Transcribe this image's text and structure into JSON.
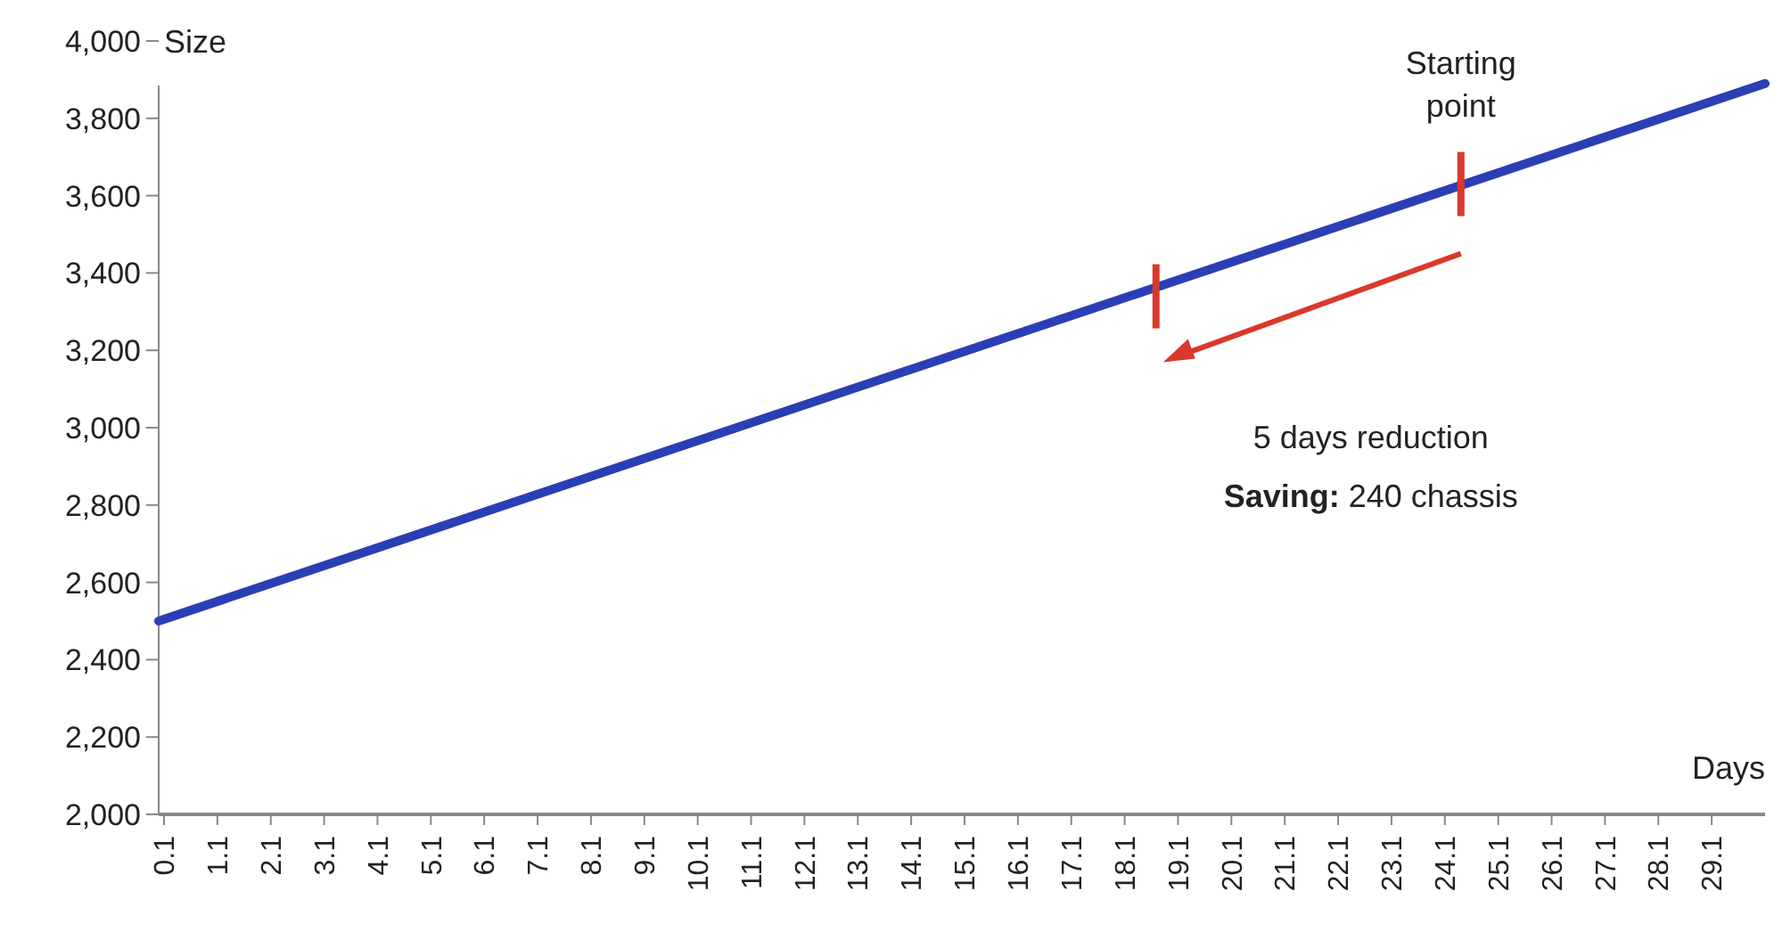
{
  "chart_data": {
    "type": "line",
    "xlabel": "Days",
    "ylabel": "Size",
    "x": [
      0,
      30.1
    ],
    "series": [
      {
        "color": "#2a3fb5",
        "values": [
          2500,
          3890
        ]
      }
    ],
    "xlim": [
      0,
      30.1
    ],
    "xticks": [
      0.1,
      1.1,
      2.1,
      3.1,
      4.1,
      5.1,
      6.1,
      7.1,
      8.1,
      9.1,
      10.1,
      11.1,
      12.1,
      13.1,
      14.1,
      15.1,
      16.1,
      17.1,
      18.1,
      19.1,
      20.1,
      21.1,
      22.1,
      23.1,
      24.1,
      25.1,
      26.1,
      27.1,
      28.1,
      29.1
    ],
    "ylim": [
      2000,
      4000
    ],
    "yticks": [
      {
        "value": 2000,
        "label": "2,000"
      },
      {
        "value": 2200,
        "label": "2,200"
      },
      {
        "value": 2400,
        "label": "2,400"
      },
      {
        "value": 2600,
        "label": "2,600"
      },
      {
        "value": 2800,
        "label": "2,800"
      },
      {
        "value": 3000,
        "label": "3,000"
      },
      {
        "value": 3200,
        "label": "3,200"
      },
      {
        "value": 3400,
        "label": "3,400"
      },
      {
        "value": 3600,
        "label": "3,600"
      },
      {
        "value": 3800,
        "label": "3,800"
      },
      {
        "value": 4000,
        "label": "4,000"
      }
    ],
    "annotations": [
      {
        "text": "Starting point",
        "x": 24.4,
        "y": 3630
      },
      "5 days reduction",
      "Saving: 240 chassis"
    ],
    "grid": false
  }
}
